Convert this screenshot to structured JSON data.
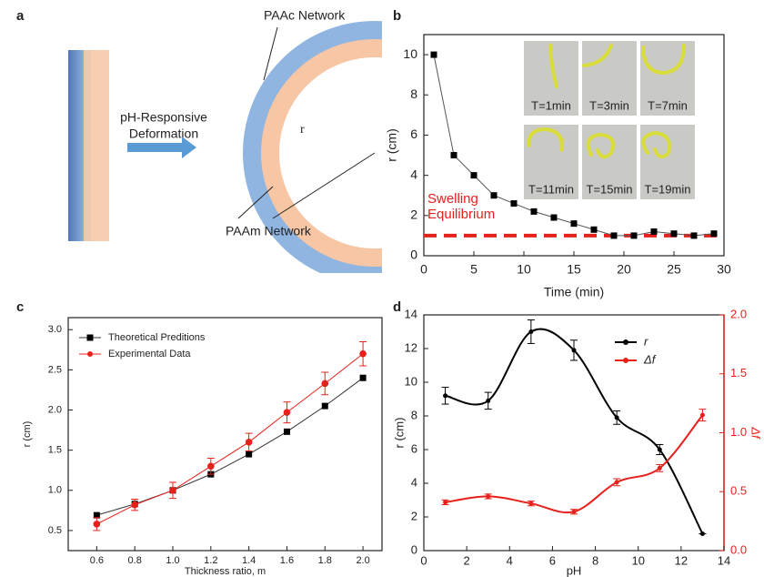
{
  "diagram": {
    "label": "a",
    "outer_layer": "PAAc Network",
    "arrow_label": [
      "pH-Responsive",
      "Deformation"
    ],
    "radius": "r",
    "inner_layer": "PAAm Network"
  },
  "chart_data": [
    {
      "type": "line",
      "label": "b",
      "xlabel": "Time (min)",
      "ylabel": "r (cm)",
      "x": [
        1,
        3,
        5,
        7,
        9,
        11,
        13,
        15,
        17,
        19,
        21,
        23,
        25,
        27,
        29
      ],
      "series": [
        {
          "color": "#555555",
          "marker": "square",
          "marker_color": "#000000",
          "values": [
            10,
            5,
            4,
            3,
            2.6,
            2.2,
            1.9,
            1.6,
            1.3,
            1.0,
            1.0,
            1.2,
            1.1,
            1.0,
            1.1
          ]
        }
      ],
      "xlim": [
        0,
        30
      ],
      "xticks": [
        0,
        5,
        10,
        15,
        20,
        25,
        30
      ],
      "ylim": [
        0,
        11
      ],
      "yticks": [
        0,
        2,
        4,
        6,
        8,
        10
      ],
      "hline": {
        "value": 1,
        "color": "#e8201c",
        "label_lines": [
          "Swelling",
          "Equilibrium"
        ]
      },
      "insets": [
        "T=1min",
        "T=3min",
        "T=7min",
        "T=11min",
        "T=15min",
        "T=19min"
      ]
    },
    {
      "type": "line",
      "label": "c",
      "xlabel": "Thickness ratio, m",
      "ylabel": "r (cm)",
      "legend": "upper left",
      "x": [
        0.6,
        0.8,
        1.0,
        1.2,
        1.4,
        1.6,
        1.8,
        2.0
      ],
      "series": [
        {
          "name": "Theoretical Preditions",
          "color": "#333333",
          "marker": "square",
          "marker_color": "#000000",
          "values": [
            0.69,
            0.83,
            1.0,
            1.2,
            1.45,
            1.73,
            2.05,
            2.4
          ]
        },
        {
          "name": "Experimental Data",
          "color": "#e8201c",
          "marker": "circle",
          "marker_color": "#e8201c",
          "values": [
            0.58,
            0.82,
            1.0,
            1.3,
            1.6,
            1.97,
            2.33,
            2.7
          ],
          "errors": [
            0.08,
            0.07,
            0.1,
            0.1,
            0.11,
            0.13,
            0.14,
            0.15
          ]
        }
      ],
      "xlim": [
        0.45,
        2.1
      ],
      "xticks": [
        0.6,
        0.8,
        {
          "value": 1,
          "label": "1.0"
        },
        1.2,
        1.4,
        1.6,
        1.8,
        {
          "value": 2,
          "label": "2.0"
        }
      ],
      "ylim": [
        0.25,
        3.15
      ],
      "yticks": [
        0.5,
        {
          "value": 1,
          "label": "1.0"
        },
        1.5,
        {
          "value": 2,
          "label": "2.0"
        },
        2.5,
        {
          "value": 3,
          "label": "3.0"
        }
      ]
    },
    {
      "type": "line",
      "label": "d",
      "smooth": true,
      "xlabel": "pH",
      "ylabel": "r (cm)",
      "y2label": "Δf",
      "legend": "upper right",
      "x": [
        1,
        3,
        5,
        7,
        9,
        11,
        13
      ],
      "series": [
        {
          "name": "r",
          "color": "#000000",
          "marker": "circle",
          "marker_color": "#000000",
          "values": [
            9.2,
            8.9,
            13.0,
            11.9,
            7.9,
            6.0,
            1.0
          ],
          "errors": [
            0.5,
            0.5,
            0.7,
            0.6,
            0.4,
            0.3,
            0
          ]
        },
        {
          "name": "Δf",
          "color": "#e8201c",
          "marker": "circle",
          "marker_color": "#e8201c",
          "axis": "y2",
          "values": [
            0.41,
            0.46,
            0.4,
            0.33,
            0.58,
            0.7,
            1.15
          ],
          "errors": [
            0.02,
            0.02,
            0.02,
            0.02,
            0.03,
            0.03,
            0.05
          ]
        }
      ],
      "xlim": [
        0,
        14
      ],
      "xticks": [
        0,
        2,
        4,
        6,
        8,
        10,
        12,
        14
      ],
      "ylim": [
        0,
        14
      ],
      "yticks": [
        0,
        2,
        4,
        6,
        8,
        10,
        12,
        14
      ],
      "y2lim": [
        0,
        2
      ],
      "y2ticks": [
        {
          "value": 0,
          "label": "0.0"
        },
        0.5,
        {
          "value": 1,
          "label": "1.0"
        },
        1.5,
        {
          "value": 2,
          "label": "2.0"
        }
      ]
    }
  ]
}
